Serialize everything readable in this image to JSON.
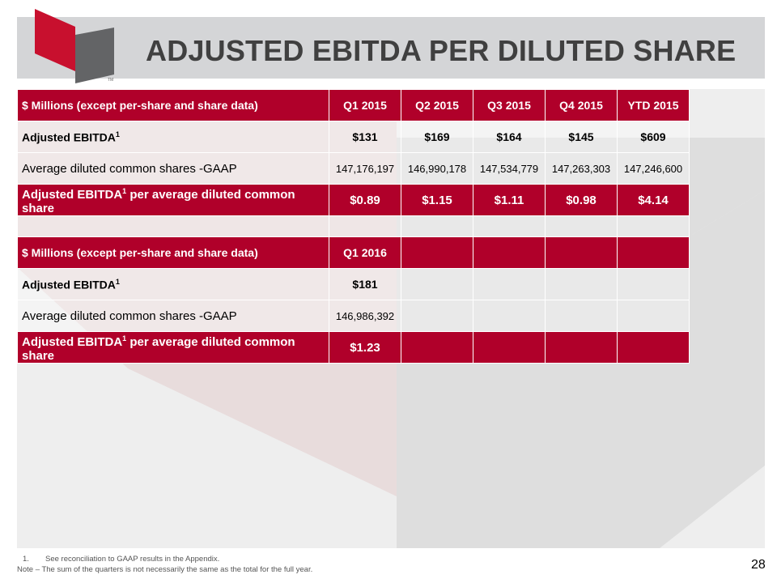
{
  "title": "ADJUSTED EBITDA PER DILUTED SHARE",
  "logo": {
    "mark": "TM"
  },
  "colors": {
    "accent": "#b0002a",
    "title_bar": "#d4d5d7",
    "title_text": "#404040"
  },
  "table1": {
    "header": [
      "$ Millions (except per-share and share data)",
      "Q1 2015",
      "Q2 2015",
      "Q3 2015",
      "Q4 2015",
      "YTD 2015"
    ],
    "rows": [
      {
        "label": "Adjusted EBITDA",
        "sup": "1",
        "values": [
          "$131",
          "$169",
          "$164",
          "$145",
          "$609"
        ]
      },
      {
        "label": "Average diluted common shares -GAAP",
        "values": [
          "147,176,197",
          "146,990,178",
          "147,534,779",
          "147,263,303",
          "147,246,600"
        ]
      },
      {
        "label": "Adjusted EBITDA",
        "sup": "1",
        "label_rest": " per average diluted common share",
        "values": [
          "$0.89",
          "$1.15",
          "$1.11",
          "$0.98",
          "$4.14"
        ]
      }
    ]
  },
  "table2": {
    "header": [
      "$ Millions (except per-share and share data)",
      "Q1 2016"
    ],
    "rows": [
      {
        "label": "Adjusted EBITDA",
        "sup": "1",
        "values": [
          "$181"
        ]
      },
      {
        "label": "Average diluted common shares -GAAP",
        "values": [
          "146,986,392"
        ]
      },
      {
        "label": "Adjusted EBITDA",
        "sup": "1",
        "label_rest": " per average diluted common share",
        "values": [
          "$1.23"
        ]
      }
    ]
  },
  "footnotes": {
    "num": "1.",
    "note1": "See reconciliation to GAAP results in the Appendix.",
    "note2": "Note – The sum of the quarters is not necessarily the same as the total for the full year."
  },
  "page_number": "28"
}
